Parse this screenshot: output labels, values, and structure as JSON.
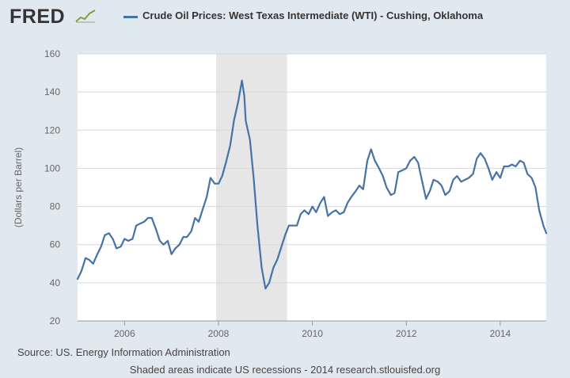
{
  "header": {
    "logo_text": "FRED",
    "legend_label": "Crude Oil Prices: West Texas Intermediate (WTI) - Cushing, Oklahoma"
  },
  "footer": {
    "source": "Source: US. Energy Information Administration",
    "note": "Shaded areas indicate US recessions - 2014 research.stlouisfed.org"
  },
  "colors": {
    "series": "#4572a7",
    "recession": "#e6e6e6",
    "frame": "#e1e9f0",
    "grid": "#d8d8d8"
  },
  "chart_data": {
    "type": "line",
    "title": "Crude Oil Prices: West Texas Intermediate (WTI) - Cushing, Oklahoma",
    "xlabel": "",
    "ylabel": "(Dollars per Barrel)",
    "ylim": [
      20,
      160
    ],
    "xlim": [
      2005.0,
      2014.98
    ],
    "yticks": [
      20,
      40,
      60,
      80,
      100,
      120,
      140,
      160
    ],
    "xticks": [
      2006,
      2008,
      2010,
      2012,
      2014
    ],
    "ytick_labels": [
      "20",
      "40",
      "60",
      "80",
      "100",
      "120",
      "140",
      "160"
    ],
    "xtick_labels": [
      "2006",
      "2008",
      "2010",
      "2012",
      "2014"
    ],
    "grid": true,
    "recessions": [
      {
        "start": 2007.95,
        "end": 2009.46
      }
    ],
    "series": [
      {
        "name": "Crude Oil Prices: West Texas Intermediate (WTI) - Cushing, Oklahoma",
        "x": [
          2005.0,
          2005.08,
          2005.17,
          2005.25,
          2005.33,
          2005.42,
          2005.5,
          2005.58,
          2005.67,
          2005.75,
          2005.83,
          2005.92,
          2006.0,
          2006.08,
          2006.17,
          2006.25,
          2006.33,
          2006.42,
          2006.5,
          2006.58,
          2006.67,
          2006.75,
          2006.83,
          2006.92,
          2007.0,
          2007.08,
          2007.17,
          2007.25,
          2007.33,
          2007.42,
          2007.5,
          2007.58,
          2007.67,
          2007.75,
          2007.83,
          2007.92,
          2008.0,
          2008.08,
          2008.17,
          2008.25,
          2008.33,
          2008.42,
          2008.5,
          2008.55,
          2008.58,
          2008.67,
          2008.75,
          2008.83,
          2008.92,
          2008.97,
          2009.0,
          2009.08,
          2009.17,
          2009.25,
          2009.33,
          2009.42,
          2009.5,
          2009.58,
          2009.67,
          2009.75,
          2009.83,
          2009.92,
          2010.0,
          2010.08,
          2010.17,
          2010.25,
          2010.33,
          2010.42,
          2010.5,
          2010.58,
          2010.67,
          2010.75,
          2010.83,
          2010.92,
          2011.0,
          2011.08,
          2011.17,
          2011.25,
          2011.33,
          2011.42,
          2011.5,
          2011.58,
          2011.67,
          2011.75,
          2011.83,
          2011.92,
          2012.0,
          2012.08,
          2012.17,
          2012.25,
          2012.33,
          2012.42,
          2012.5,
          2012.58,
          2012.67,
          2012.75,
          2012.83,
          2012.92,
          2013.0,
          2013.08,
          2013.17,
          2013.25,
          2013.33,
          2013.42,
          2013.5,
          2013.58,
          2013.67,
          2013.75,
          2013.83,
          2013.92,
          2014.0,
          2014.08,
          2014.17,
          2014.25,
          2014.33,
          2014.42,
          2014.5,
          2014.58,
          2014.67,
          2014.75,
          2014.83,
          2014.92,
          2014.98
        ],
        "y": [
          42,
          46,
          53,
          52,
          50,
          55,
          59,
          65,
          66,
          63,
          58,
          59,
          63,
          62,
          63,
          70,
          71,
          72,
          74,
          74,
          68,
          62,
          60,
          62,
          55,
          58,
          60,
          64,
          64,
          67,
          74,
          72,
          79,
          85,
          95,
          92,
          92,
          96,
          104,
          112,
          125,
          135,
          146,
          138,
          125,
          115,
          95,
          70,
          48,
          41,
          37,
          40,
          48,
          52,
          58,
          65,
          70,
          70,
          70,
          76,
          78,
          76,
          80,
          77,
          82,
          85,
          75,
          77,
          78,
          76,
          77,
          82,
          85,
          88,
          91,
          89,
          104,
          110,
          104,
          100,
          96,
          90,
          86,
          87,
          98,
          99,
          100,
          104,
          106,
          103,
          94,
          84,
          88,
          94,
          93,
          91,
          86,
          88,
          94,
          96,
          93,
          94,
          95,
          97,
          105,
          108,
          105,
          100,
          94,
          98,
          95,
          101,
          101,
          102,
          101,
          104,
          103,
          97,
          95,
          90,
          78,
          70,
          66
        ]
      }
    ]
  }
}
